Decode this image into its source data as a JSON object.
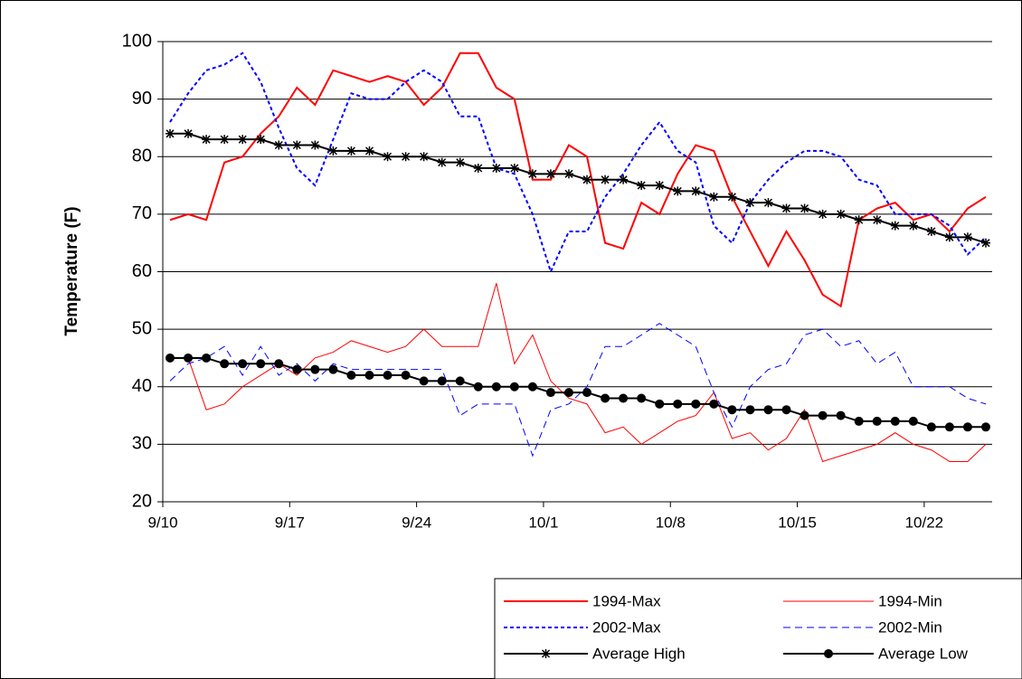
{
  "chart_data": {
    "type": "line",
    "y_label": "Temperature (F)",
    "categories": [
      "9/10",
      null,
      null,
      null,
      null,
      null,
      null,
      "9/17",
      null,
      null,
      null,
      null,
      null,
      null,
      "9/24",
      null,
      null,
      null,
      null,
      null,
      null,
      "10/1",
      null,
      null,
      null,
      null,
      null,
      null,
      "10/8",
      null,
      null,
      null,
      null,
      null,
      null,
      "10/15",
      null,
      null,
      null,
      null,
      null,
      null,
      "10/22",
      null,
      null,
      null
    ],
    "ylim": [
      20,
      100
    ],
    "yticks": [
      20,
      30,
      40,
      50,
      60,
      70,
      80,
      90,
      100
    ],
    "grid": true,
    "legend": "bottom-right",
    "series": [
      {
        "name": "1994-Max",
        "color": "#ff0000",
        "line_style": "solid",
        "line_width": 2,
        "marker": null,
        "values": [
          69,
          70,
          69,
          79,
          80,
          84,
          87,
          92,
          89,
          95,
          94,
          93,
          94,
          93,
          89,
          92,
          98,
          98,
          92,
          90,
          76,
          76,
          82,
          80,
          65,
          64,
          72,
          70,
          77,
          82,
          81,
          73,
          67,
          61,
          67,
          62,
          56,
          54,
          69,
          71,
          72,
          69,
          70,
          67,
          71,
          73
        ]
      },
      {
        "name": "1994-Min",
        "color": "#ff0000",
        "line_style": "solid",
        "line_width": 1,
        "marker": null,
        "values": [
          45,
          45,
          36,
          37,
          40,
          42,
          44,
          42,
          45,
          46,
          48,
          47,
          46,
          47,
          50,
          47,
          47,
          47,
          58,
          44,
          49,
          41,
          38,
          37,
          32,
          33,
          30,
          32,
          34,
          35,
          39,
          31,
          32,
          29,
          31,
          36,
          27,
          28,
          29,
          30,
          32,
          30,
          29,
          27,
          27,
          30
        ]
      },
      {
        "name": "2002-Max",
        "color": "#0000ff",
        "line_style": "dotted",
        "line_width": 2,
        "marker": null,
        "values": [
          86,
          91,
          95,
          96,
          98,
          93,
          85,
          78,
          75,
          83,
          91,
          90,
          90,
          93,
          95,
          93,
          87,
          87,
          78,
          77,
          70,
          60,
          67,
          67,
          73,
          77,
          82,
          86,
          81,
          79,
          68,
          65,
          72,
          76,
          79,
          81,
          81,
          80,
          76,
          75,
          70,
          70,
          70,
          68,
          63,
          66
        ]
      },
      {
        "name": "2002-Min",
        "color": "#0000ff",
        "line_style": "dashed",
        "line_width": 1,
        "marker": null,
        "values": [
          41,
          44,
          45,
          47,
          42,
          47,
          42,
          44,
          41,
          44,
          43,
          43,
          43,
          43,
          43,
          43,
          35,
          37,
          37,
          37,
          28,
          36,
          37,
          40,
          47,
          47,
          49,
          51,
          49,
          47,
          39,
          33,
          40,
          43,
          44,
          49,
          50,
          47,
          48,
          44,
          46,
          40,
          40,
          40,
          38,
          37
        ]
      },
      {
        "name": "Average High",
        "color": "#000000",
        "line_style": "solid",
        "line_width": 2,
        "marker": "star",
        "values": [
          84,
          84,
          83,
          83,
          83,
          83,
          82,
          82,
          82,
          81,
          81,
          81,
          80,
          80,
          80,
          79,
          79,
          78,
          78,
          78,
          77,
          77,
          77,
          76,
          76,
          76,
          75,
          75,
          74,
          74,
          73,
          73,
          72,
          72,
          71,
          71,
          70,
          70,
          69,
          69,
          68,
          68,
          67,
          66,
          66,
          65
        ]
      },
      {
        "name": "Average Low",
        "color": "#000000",
        "line_style": "solid",
        "line_width": 2,
        "marker": "circle",
        "values": [
          45,
          45,
          45,
          44,
          44,
          44,
          44,
          43,
          43,
          43,
          42,
          42,
          42,
          42,
          41,
          41,
          41,
          40,
          40,
          40,
          40,
          39,
          39,
          39,
          38,
          38,
          38,
          37,
          37,
          37,
          37,
          36,
          36,
          36,
          36,
          35,
          35,
          35,
          34,
          34,
          34,
          34,
          33,
          33,
          33,
          33
        ]
      }
    ]
  }
}
